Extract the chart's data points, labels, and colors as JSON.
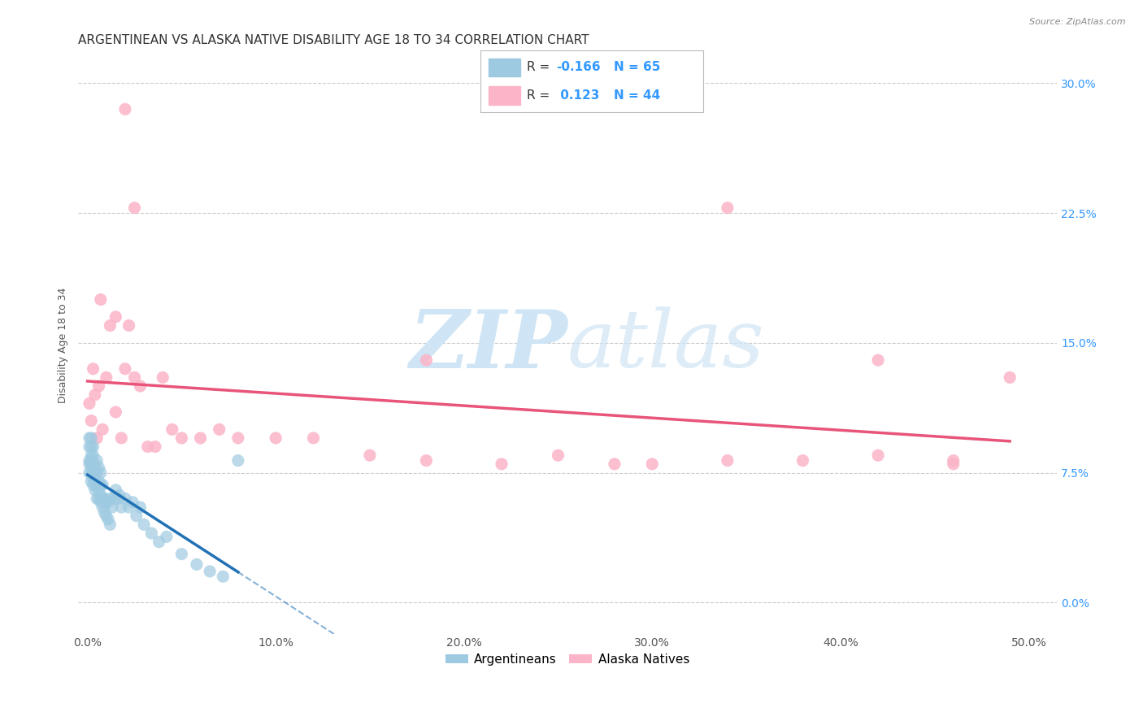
{
  "title": "ARGENTINEAN VS ALASKA NATIVE DISABILITY AGE 18 TO 34 CORRELATION CHART",
  "source": "Source: ZipAtlas.com",
  "ylabel": "Disability Age 18 to 34",
  "xlabel_ticks": [
    "0.0%",
    "10.0%",
    "20.0%",
    "30.0%",
    "40.0%",
    "50.0%"
  ],
  "xlabel_vals": [
    0.0,
    0.1,
    0.2,
    0.3,
    0.4,
    0.5
  ],
  "ylabel_ticks": [
    "0.0%",
    "7.5%",
    "15.0%",
    "22.5%",
    "30.0%"
  ],
  "ylabel_vals": [
    0.0,
    0.075,
    0.15,
    0.225,
    0.3
  ],
  "xlim": [
    -0.005,
    0.515
  ],
  "ylim": [
    -0.018,
    0.315
  ],
  "argentinean_R": -0.166,
  "argentinean_N": 65,
  "alaska_R": 0.123,
  "alaska_N": 44,
  "argentinean_color": "#9ecae1",
  "alaska_color": "#fbb4c8",
  "argentinean_line_color": "#2171b5",
  "alaska_line_color": "#e8547a",
  "legend_argentinean_label": "Argentineans",
  "legend_alaska_label": "Alaska Natives",
  "watermark_color": "#cfe5f5",
  "grid_color": "#cccccc",
  "title_fontsize": 11,
  "axis_label_fontsize": 9,
  "tick_fontsize": 10,
  "right_tick_color": "#3399ff",
  "argentinean_x": [
    0.001,
    0.001,
    0.001,
    0.001,
    0.001,
    0.002,
    0.002,
    0.002,
    0.002,
    0.002,
    0.002,
    0.002,
    0.003,
    0.003,
    0.003,
    0.003,
    0.003,
    0.003,
    0.004,
    0.004,
    0.004,
    0.004,
    0.005,
    0.005,
    0.005,
    0.005,
    0.006,
    0.006,
    0.006,
    0.006,
    0.007,
    0.007,
    0.007,
    0.007,
    0.008,
    0.008,
    0.008,
    0.009,
    0.009,
    0.01,
    0.01,
    0.011,
    0.011,
    0.012,
    0.012,
    0.013,
    0.014,
    0.015,
    0.016,
    0.017,
    0.018,
    0.02,
    0.022,
    0.024,
    0.026,
    0.028,
    0.03,
    0.034,
    0.038,
    0.042,
    0.05,
    0.058,
    0.065,
    0.072,
    0.08
  ],
  "argentinean_y": [
    0.075,
    0.08,
    0.082,
    0.09,
    0.095,
    0.07,
    0.075,
    0.08,
    0.082,
    0.085,
    0.09,
    0.095,
    0.068,
    0.072,
    0.075,
    0.08,
    0.085,
    0.09,
    0.065,
    0.07,
    0.075,
    0.08,
    0.06,
    0.068,
    0.075,
    0.082,
    0.06,
    0.065,
    0.07,
    0.078,
    0.058,
    0.062,
    0.068,
    0.075,
    0.055,
    0.06,
    0.068,
    0.052,
    0.06,
    0.05,
    0.058,
    0.048,
    0.058,
    0.045,
    0.06,
    0.055,
    0.06,
    0.065,
    0.06,
    0.062,
    0.055,
    0.06,
    0.055,
    0.058,
    0.05,
    0.055,
    0.045,
    0.04,
    0.035,
    0.038,
    0.028,
    0.022,
    0.018,
    0.015,
    0.082
  ],
  "alaska_x": [
    0.001,
    0.002,
    0.003,
    0.004,
    0.005,
    0.006,
    0.007,
    0.008,
    0.01,
    0.012,
    0.015,
    0.018,
    0.02,
    0.022,
    0.025,
    0.028,
    0.032,
    0.036,
    0.04,
    0.045,
    0.05,
    0.06,
    0.07,
    0.08,
    0.1,
    0.12,
    0.15,
    0.18,
    0.22,
    0.25,
    0.28,
    0.3,
    0.34,
    0.38,
    0.42,
    0.46,
    0.49,
    0.015,
    0.02,
    0.025,
    0.18,
    0.34,
    0.42,
    0.46
  ],
  "alaska_y": [
    0.115,
    0.105,
    0.135,
    0.12,
    0.095,
    0.125,
    0.175,
    0.1,
    0.13,
    0.16,
    0.11,
    0.095,
    0.135,
    0.16,
    0.13,
    0.125,
    0.09,
    0.09,
    0.13,
    0.1,
    0.095,
    0.095,
    0.1,
    0.095,
    0.095,
    0.095,
    0.085,
    0.082,
    0.08,
    0.085,
    0.08,
    0.08,
    0.082,
    0.082,
    0.085,
    0.082,
    0.13,
    0.165,
    0.285,
    0.228,
    0.14,
    0.228,
    0.14,
    0.08
  ]
}
